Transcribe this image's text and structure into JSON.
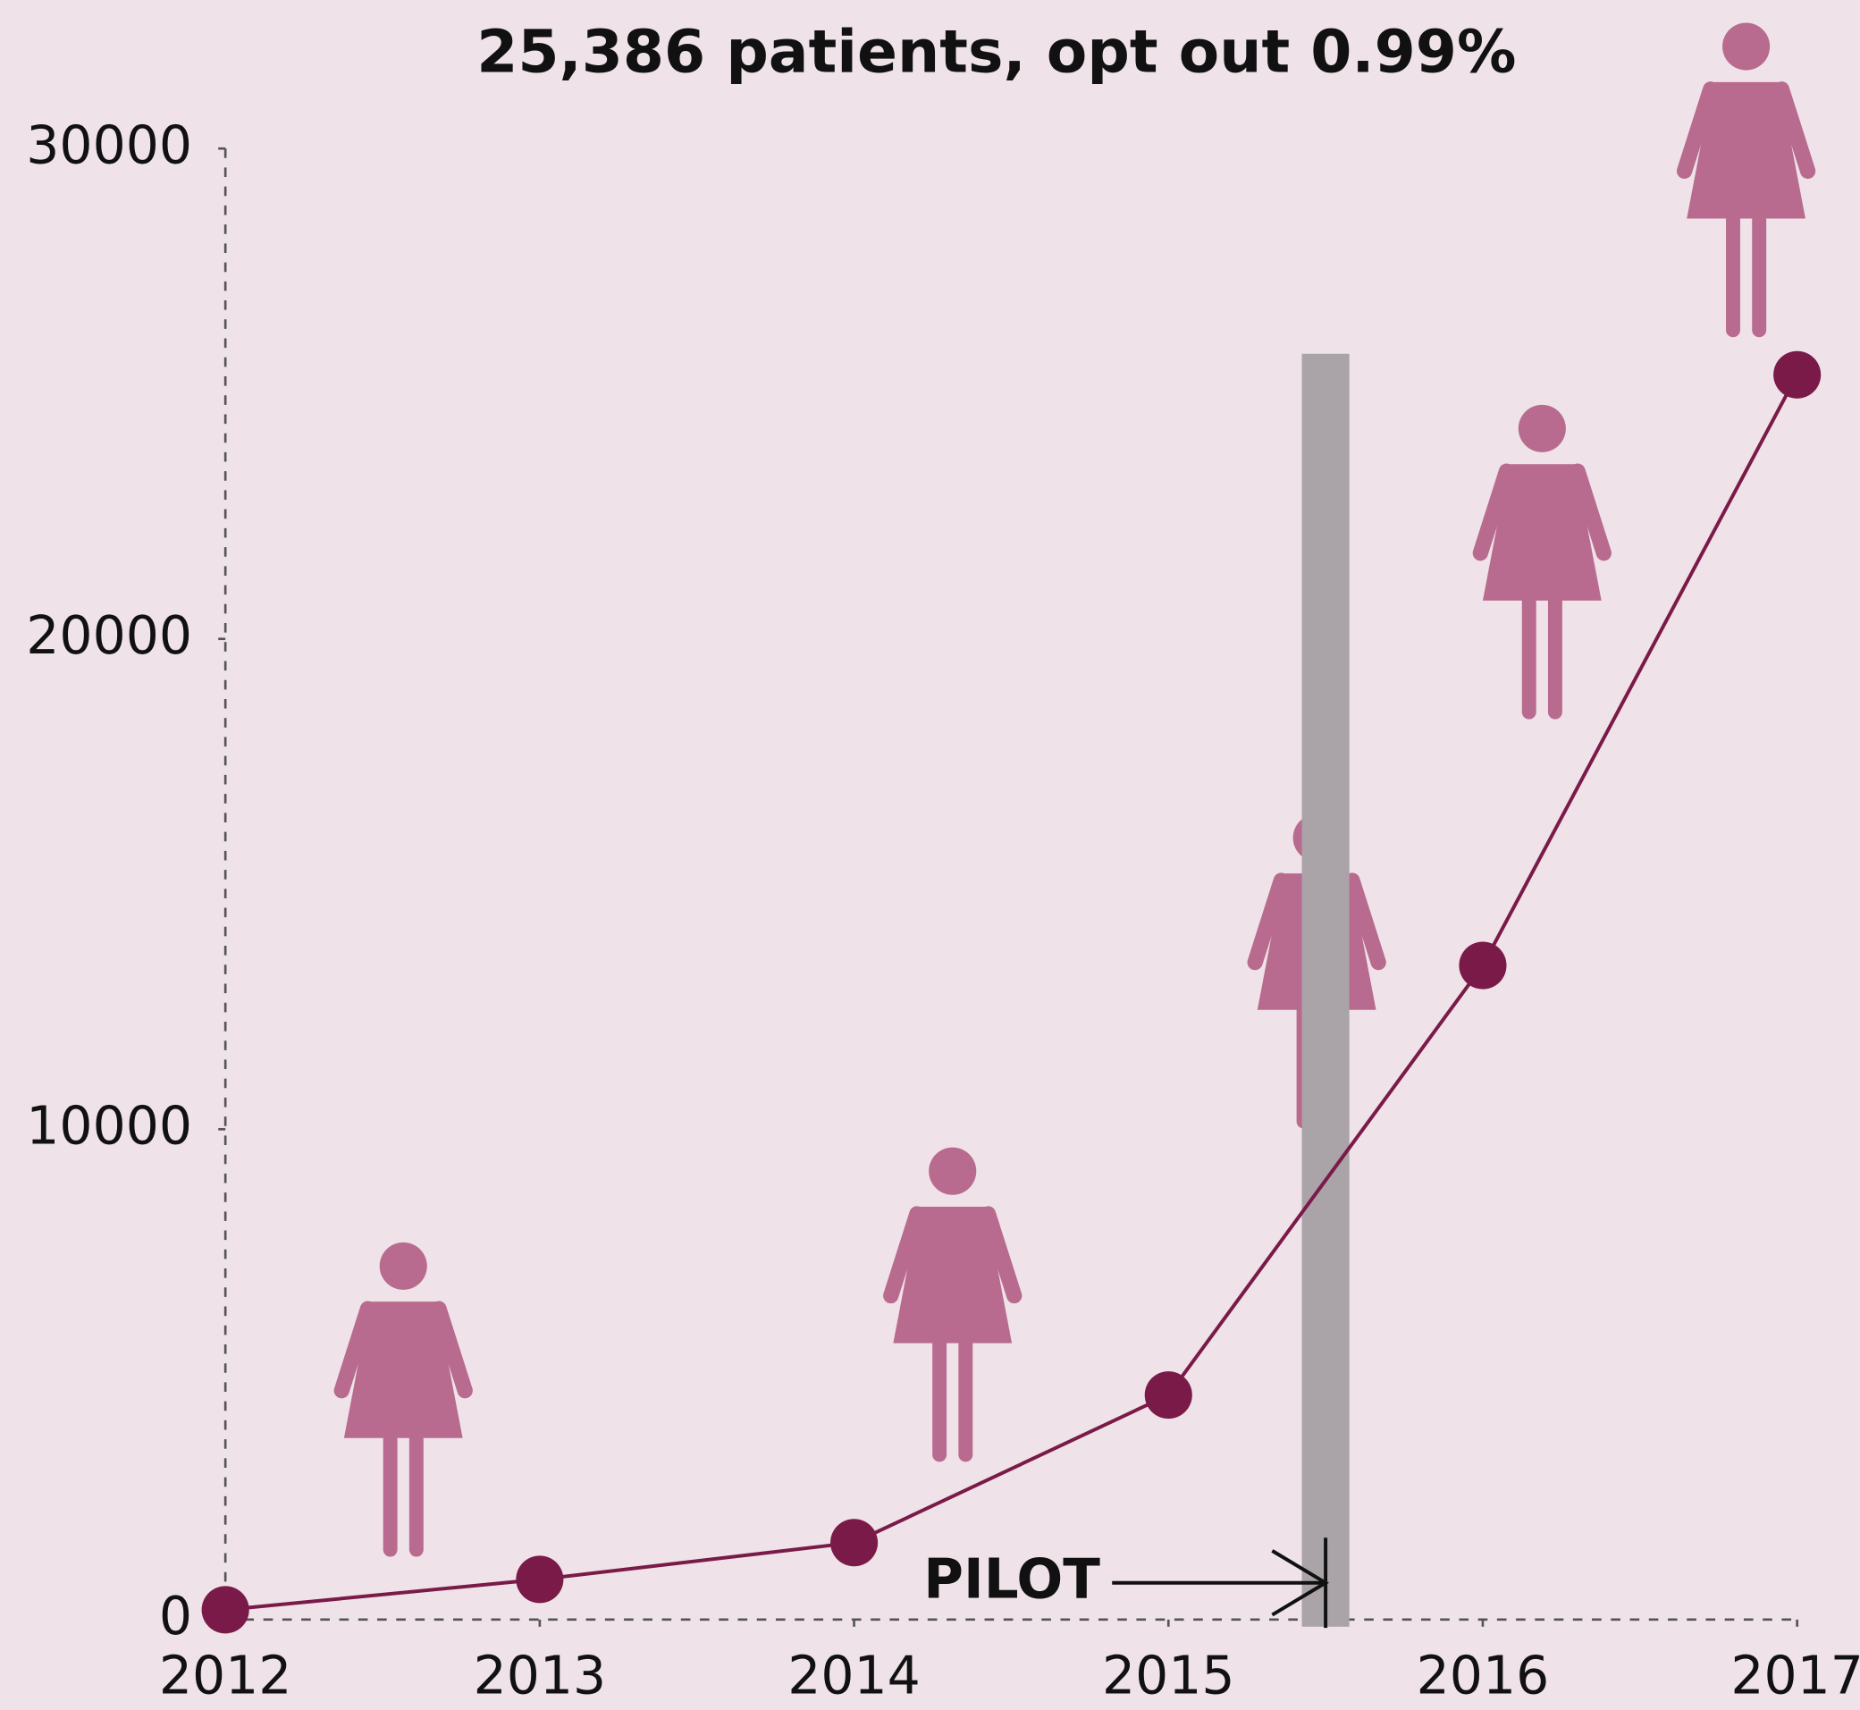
{
  "chart_data": {
    "type": "line",
    "title": "25,386 patients,  opt out 0.99%",
    "x": [
      2012,
      2013,
      2014,
      2015,
      2016,
      2017
    ],
    "values": [
      200,
      820,
      1570,
      4580,
      13340,
      25386
    ],
    "color": "#7a1a48",
    "xlim": [
      2012,
      2017
    ],
    "xticks": [
      2012,
      2013,
      2014,
      2015,
      2016,
      2017
    ],
    "ylim": [
      0,
      30000
    ],
    "yticks": [
      0,
      10000,
      20000,
      30000
    ],
    "annotations": [
      {
        "text": "PILOT",
        "x": 2015.5
      }
    ]
  }
}
